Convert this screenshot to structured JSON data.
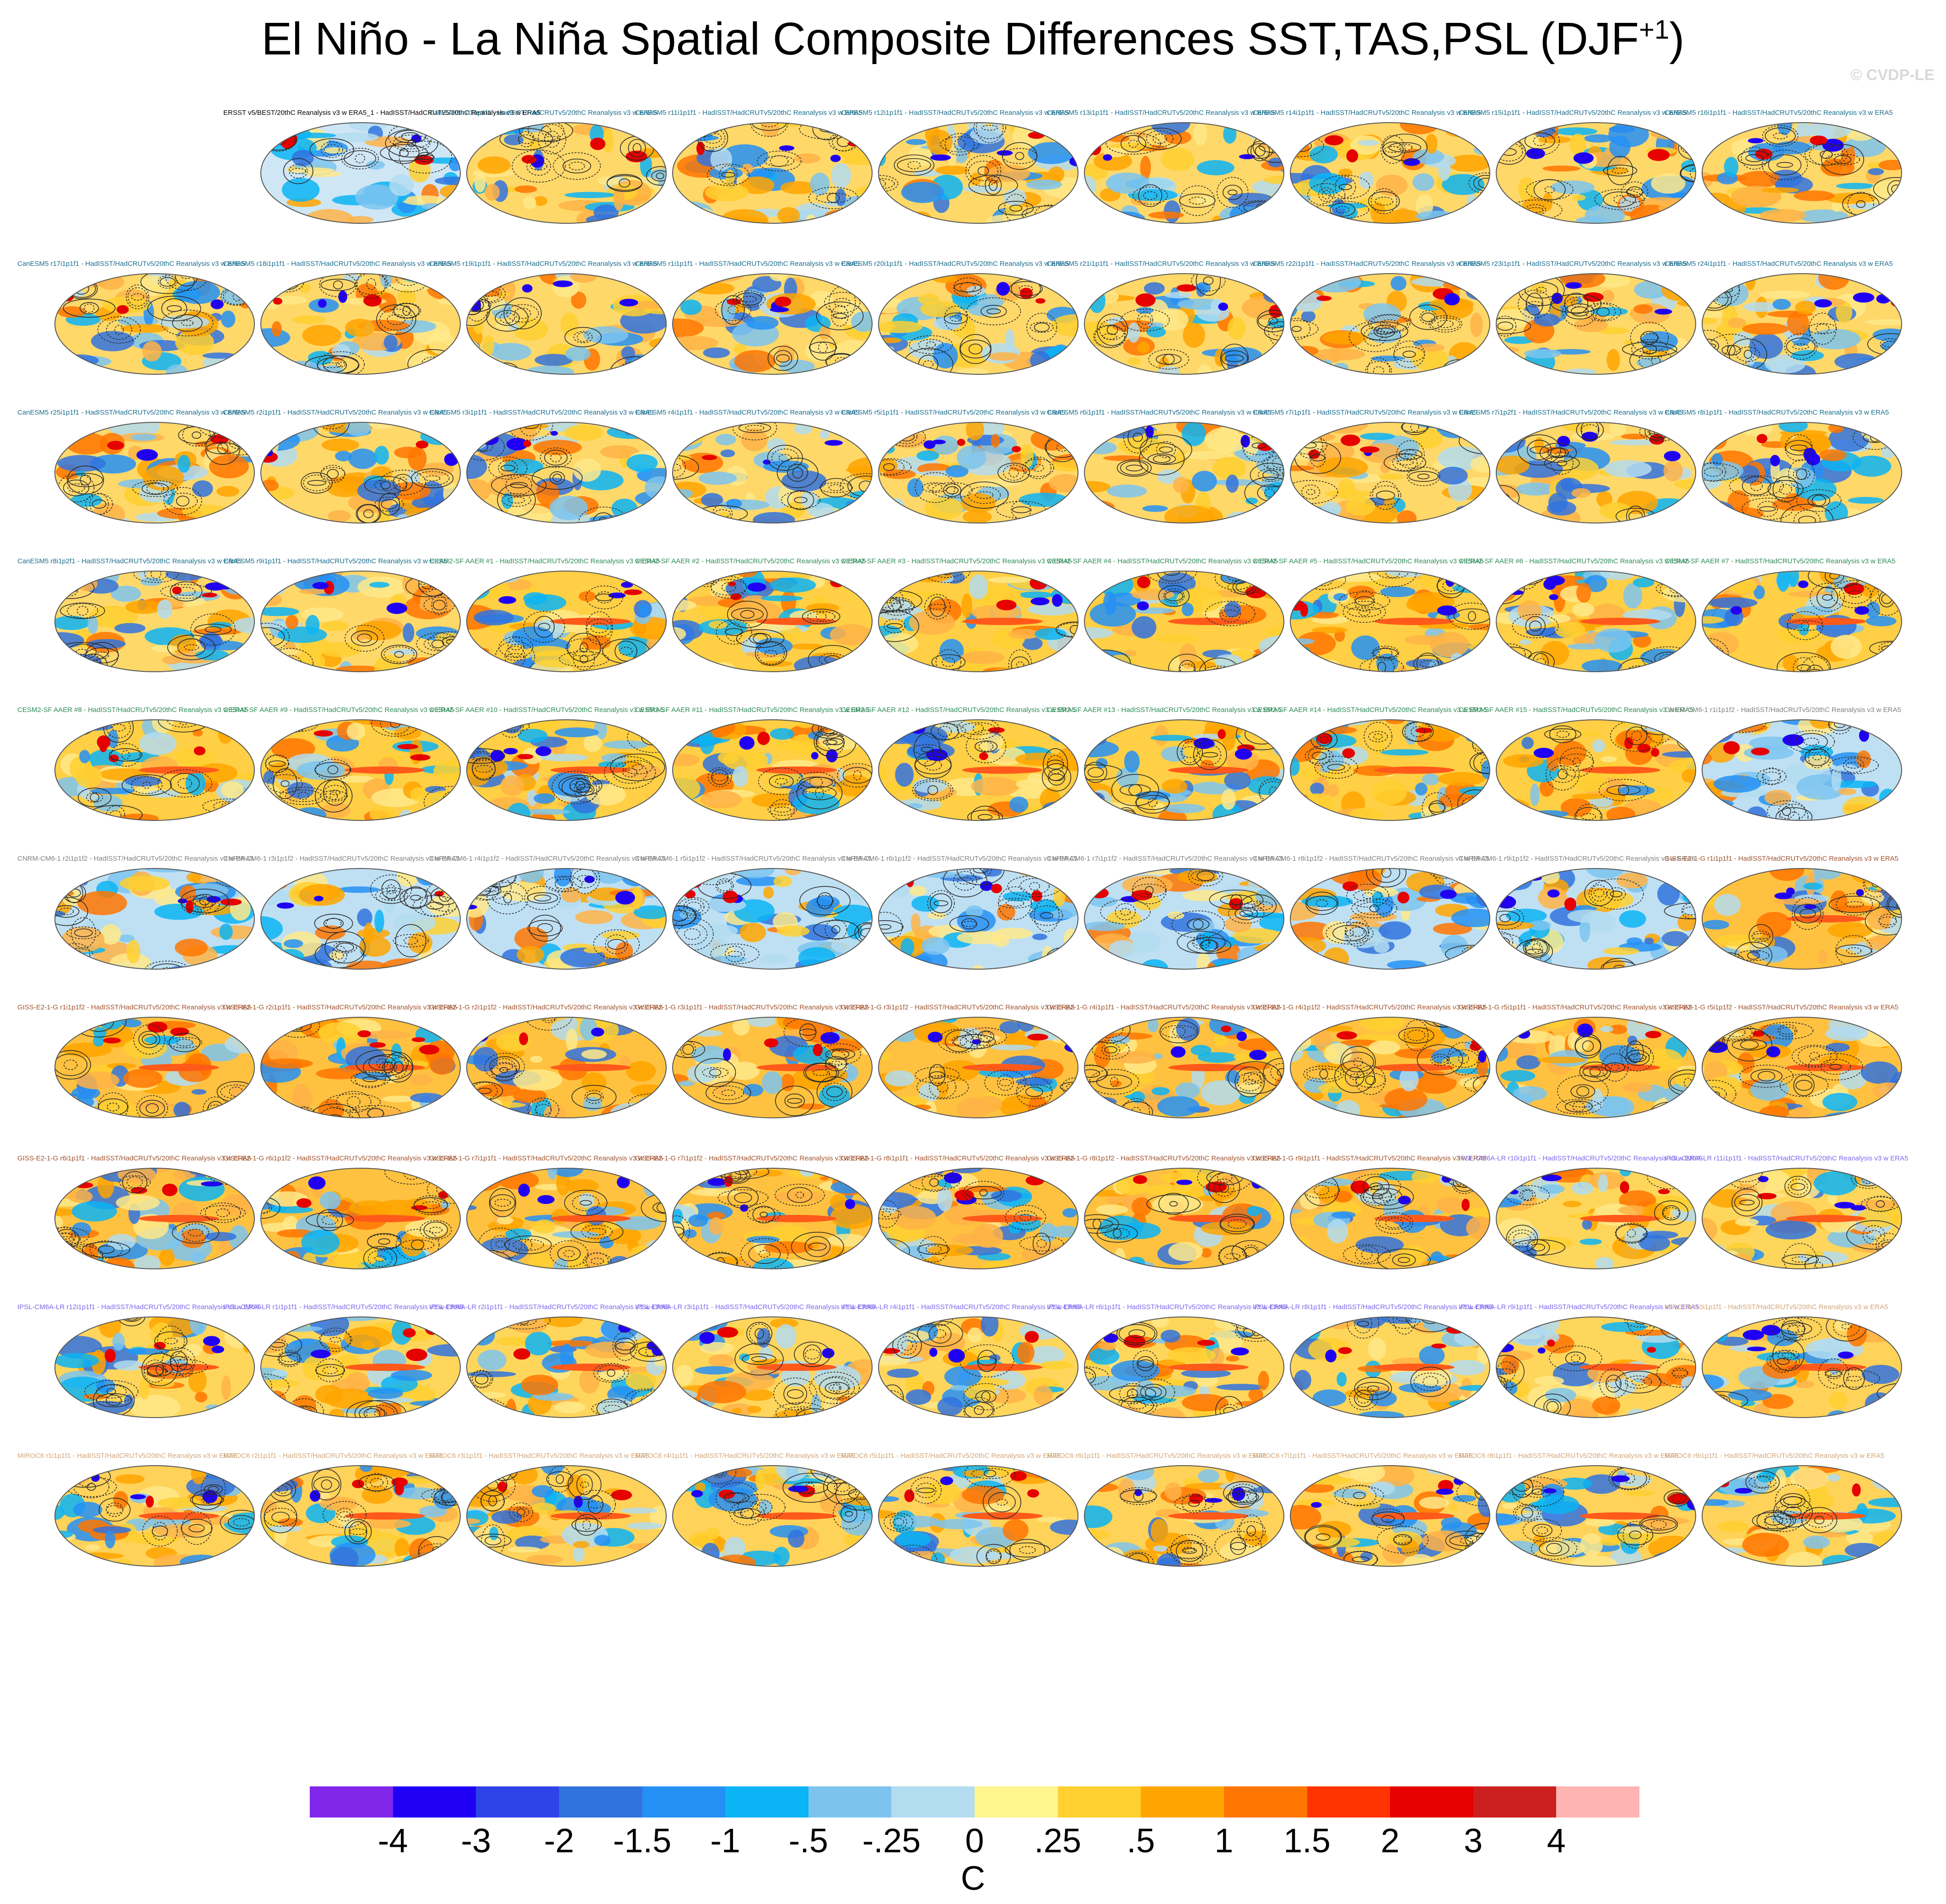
{
  "title": {
    "main": "El Niño - La Niña Spatial Composite Differences SST,TAS,PSL (DJF",
    "superscript": "+1",
    "close": ")"
  },
  "copyright": "© CVDP-LE",
  "panels": [
    {
      "label": "ERSST v5/BEST/20thC Reanalysis v3 w ERA5_1 - HadISST/HadCRUTv5/20thC Reanalysis v3 w ERA5",
      "color": "#000000",
      "pattern": "obs"
    },
    {
      "label": "CanESM5 r10i1p1f1 - HadISST/HadCRUTv5/20thC Reanalysis v3 w ERA5",
      "color": "#1a6e8e",
      "pattern": "canesm"
    },
    {
      "label": "CanESM5 r11i1p1f1 - HadISST/HadCRUTv5/20thC Reanalysis v3 w ERA5",
      "color": "#1a6e8e",
      "pattern": "canesm"
    },
    {
      "label": "CanESM5 r12i1p1f1 - HadISST/HadCRUTv5/20thC Reanalysis v3 w ERA5",
      "color": "#1a6e8e",
      "pattern": "canesm"
    },
    {
      "label": "CanESM5 r13i1p1f1 - HadISST/HadCRUTv5/20thC Reanalysis v3 w ERA5",
      "color": "#1a6e8e",
      "pattern": "canesm"
    },
    {
      "label": "CanESM5 r14i1p1f1 - HadISST/HadCRUTv5/20thC Reanalysis v3 w ERA5",
      "color": "#1a6e8e",
      "pattern": "canesm"
    },
    {
      "label": "CanESM5 r15i1p1f1 - HadISST/HadCRUTv5/20thC Reanalysis v3 w ERA5",
      "color": "#1a6e8e",
      "pattern": "canesm"
    },
    {
      "label": "CanESM5 r16i1p1f1 - HadISST/HadCRUTv5/20thC Reanalysis v3 w ERA5",
      "color": "#1a6e8e",
      "pattern": "canesm"
    },
    {
      "label": "CanESM5 r17i1p1f1 - HadISST/HadCRUTv5/20thC Reanalysis v3 w ERA5",
      "color": "#1a6e8e",
      "pattern": "canesm"
    },
    {
      "label": "CanESM5 r18i1p1f1 - HadISST/HadCRUTv5/20thC Reanalysis v3 w ERA5",
      "color": "#1a6e8e",
      "pattern": "canesm"
    },
    {
      "label": "CanESM5 r19i1p1f1 - HadISST/HadCRUTv5/20thC Reanalysis v3 w ERA5",
      "color": "#1a6e8e",
      "pattern": "canesm"
    },
    {
      "label": "CanESM5 r1i1p1f1 - HadISST/HadCRUTv5/20thC Reanalysis v3 w ERA5",
      "color": "#1a6e8e",
      "pattern": "canesm"
    },
    {
      "label": "CanESM5 r20i1p1f1 - HadISST/HadCRUTv5/20thC Reanalysis v3 w ERA5",
      "color": "#1a6e8e",
      "pattern": "canesm"
    },
    {
      "label": "CanESM5 r21i1p1f1 - HadISST/HadCRUTv5/20thC Reanalysis v3 w ERA5",
      "color": "#1a6e8e",
      "pattern": "canesm"
    },
    {
      "label": "CanESM5 r22i1p1f1 - HadISST/HadCRUTv5/20thC Reanalysis v3 w ERA5",
      "color": "#1a6e8e",
      "pattern": "canesm"
    },
    {
      "label": "CanESM5 r23i1p1f1 - HadISST/HadCRUTv5/20thC Reanalysis v3 w ERA5",
      "color": "#1a6e8e",
      "pattern": "canesm"
    },
    {
      "label": "CanESM5 r24i1p1f1 - HadISST/HadCRUTv5/20thC Reanalysis v3 w ERA5",
      "color": "#1a6e8e",
      "pattern": "canesm"
    },
    {
      "label": "CanESM5 r25i1p1f1 - HadISST/HadCRUTv5/20thC Reanalysis v3 w ERA5",
      "color": "#1a6e8e",
      "pattern": "canesm"
    },
    {
      "label": "CanESM5 r2i1p1f1 - HadISST/HadCRUTv5/20thC Reanalysis v3 w ERA5",
      "color": "#1a6e8e",
      "pattern": "canesm"
    },
    {
      "label": "CanESM5 r3i1p1f1 - HadISST/HadCRUTv5/20thC Reanalysis v3 w ERA5",
      "color": "#1a6e8e",
      "pattern": "canesm"
    },
    {
      "label": "CanESM5 r4i1p1f1 - HadISST/HadCRUTv5/20thC Reanalysis v3 w ERA5",
      "color": "#1a6e8e",
      "pattern": "canesm"
    },
    {
      "label": "CanESM5 r5i1p1f1 - HadISST/HadCRUTv5/20thC Reanalysis v3 w ERA5",
      "color": "#1a6e8e",
      "pattern": "canesm"
    },
    {
      "label": "CanESM5 r6i1p1f1 - HadISST/HadCRUTv5/20thC Reanalysis v3 w ERA5",
      "color": "#1a6e8e",
      "pattern": "canesm"
    },
    {
      "label": "CanESM5 r7i1p1f1 - HadISST/HadCRUTv5/20thC Reanalysis v3 w ERA5",
      "color": "#1a6e8e",
      "pattern": "canesm"
    },
    {
      "label": "CanESM5 r7i1p2f1 - HadISST/HadCRUTv5/20thC Reanalysis v3 w ERA5",
      "color": "#1a6e8e",
      "pattern": "canesm"
    },
    {
      "label": "CanESM5 r8i1p1f1 - HadISST/HadCRUTv5/20thC Reanalysis v3 w ERA5",
      "color": "#1a6e8e",
      "pattern": "canesm"
    },
    {
      "label": "CanESM5 r8i1p2f1 - HadISST/HadCRUTv5/20thC Reanalysis v3 w ERA5",
      "color": "#1a6e8e",
      "pattern": "canesm"
    },
    {
      "label": "CanESM5 r9i1p1f1 - HadISST/HadCRUTv5/20thC Reanalysis v3 w ERA5",
      "color": "#1a6e8e",
      "pattern": "canesm"
    },
    {
      "label": "CESM2-SF AAER #1 - HadISST/HadCRUTv5/20thC Reanalysis v3 w ERA5",
      "color": "#2e8b57",
      "pattern": "cesm"
    },
    {
      "label": "CESM2-SF AAER #2 - HadISST/HadCRUTv5/20thC Reanalysis v3 w ERA5",
      "color": "#2e8b57",
      "pattern": "cesm"
    },
    {
      "label": "CESM2-SF AAER #3 - HadISST/HadCRUTv5/20thC Reanalysis v3 w ERA5",
      "color": "#2e8b57",
      "pattern": "cesm"
    },
    {
      "label": "CESM2-SF AAER #4 - HadISST/HadCRUTv5/20thC Reanalysis v3 w ERA5",
      "color": "#2e8b57",
      "pattern": "cesm"
    },
    {
      "label": "CESM2-SF AAER #5 - HadISST/HadCRUTv5/20thC Reanalysis v3 w ERA5",
      "color": "#2e8b57",
      "pattern": "cesm"
    },
    {
      "label": "CESM2-SF AAER #6 - HadISST/HadCRUTv5/20thC Reanalysis v3 w ERA5",
      "color": "#2e8b57",
      "pattern": "cesm"
    },
    {
      "label": "CESM2-SF AAER #7 - HadISST/HadCRUTv5/20thC Reanalysis v3 w ERA5",
      "color": "#2e8b57",
      "pattern": "cesm"
    },
    {
      "label": "CESM2-SF AAER #8 - HadISST/HadCRUTv5/20thC Reanalysis v3 w ERA5",
      "color": "#2e8b57",
      "pattern": "cesm"
    },
    {
      "label": "CESM2-SF AAER #9 - HadISST/HadCRUTv5/20thC Reanalysis v3 w ERA5",
      "color": "#2e8b57",
      "pattern": "cesm"
    },
    {
      "label": "CESM2-SF AAER #10 - HadISST/HadCRUTv5/20thC Reanalysis v3 w ERA5",
      "color": "#2e8b57",
      "pattern": "cesm"
    },
    {
      "label": "CESM2-SF AAER #11 - HadISST/HadCRUTv5/20thC Reanalysis v3 w ERA5",
      "color": "#2e8b57",
      "pattern": "cesm"
    },
    {
      "label": "CESM2-SF AAER #12 - HadISST/HadCRUTv5/20thC Reanalysis v3 w ERA5",
      "color": "#2e8b57",
      "pattern": "cesm"
    },
    {
      "label": "CESM2-SF AAER #13 - HadISST/HadCRUTv5/20thC Reanalysis v3 w ERA5",
      "color": "#2e8b57",
      "pattern": "cesm"
    },
    {
      "label": "CESM2-SF AAER #14 - HadISST/HadCRUTv5/20thC Reanalysis v3 w ERA5",
      "color": "#2e8b57",
      "pattern": "cesm"
    },
    {
      "label": "CESM2-SF AAER #15 - HadISST/HadCRUTv5/20thC Reanalysis v3 w ERA5",
      "color": "#2e8b57",
      "pattern": "cesm"
    },
    {
      "label": "CNRM-CM6-1 r1i1p1f2 - HadISST/HadCRUTv5/20thC Reanalysis v3 w ERA5",
      "color": "#808080",
      "pattern": "cnrm"
    },
    {
      "label": "CNRM-CM6-1 r2i1p1f2 - HadISST/HadCRUTv5/20thC Reanalysis v3 w ERA5",
      "color": "#808080",
      "pattern": "cnrm"
    },
    {
      "label": "CNRM-CM6-1 r3i1p1f2 - HadISST/HadCRUTv5/20thC Reanalysis v3 w ERA5",
      "color": "#808080",
      "pattern": "cnrm"
    },
    {
      "label": "CNRM-CM6-1 r4i1p1f2 - HadISST/HadCRUTv5/20thC Reanalysis v3 w ERA5",
      "color": "#808080",
      "pattern": "cnrm"
    },
    {
      "label": "CNRM-CM6-1 r5i1p1f2 - HadISST/HadCRUTv5/20thC Reanalysis v3 w ERA5",
      "color": "#808080",
      "pattern": "cnrm"
    },
    {
      "label": "CNRM-CM6-1 r6i1p1f2 - HadISST/HadCRUTv5/20thC Reanalysis v3 w ERA5",
      "color": "#808080",
      "pattern": "cnrm"
    },
    {
      "label": "CNRM-CM6-1 r7i1p1f2 - HadISST/HadCRUTv5/20thC Reanalysis v3 w ERA5",
      "color": "#808080",
      "pattern": "cnrm"
    },
    {
      "label": "CNRM-CM6-1 r8i1p1f2 - HadISST/HadCRUTv5/20thC Reanalysis v3 w ERA5",
      "color": "#808080",
      "pattern": "cnrm"
    },
    {
      "label": "CNRM-CM6-1 r9i1p1f2 - HadISST/HadCRUTv5/20thC Reanalysis v3 w ERA5",
      "color": "#808080",
      "pattern": "cnrm"
    },
    {
      "label": "GISS-E2-1-G r1i1p1f1 - HadISST/HadCRUTv5/20thC Reanalysis v3 w ERA5",
      "color": "#a0522d",
      "pattern": "giss"
    },
    {
      "label": "GISS-E2-1-G r1i1p1f2 - HadISST/HadCRUTv5/20thC Reanalysis v3 w ERA5",
      "color": "#a0522d",
      "pattern": "giss"
    },
    {
      "label": "GISS-E2-1-G r2i1p1f1 - HadISST/HadCRUTv5/20thC Reanalysis v3 w ERA5",
      "color": "#a0522d",
      "pattern": "giss"
    },
    {
      "label": "GISS-E2-1-G r2i1p1f2 - HadISST/HadCRUTv5/20thC Reanalysis v3 w ERA5",
      "color": "#a0522d",
      "pattern": "giss"
    },
    {
      "label": "GISS-E2-1-G r3i1p1f1 - HadISST/HadCRUTv5/20thC Reanalysis v3 w ERA5",
      "color": "#a0522d",
      "pattern": "giss"
    },
    {
      "label": "GISS-E2-1-G r3i1p1f2 - HadISST/HadCRUTv5/20thC Reanalysis v3 w ERA5",
      "color": "#a0522d",
      "pattern": "giss"
    },
    {
      "label": "GISS-E2-1-G r4i1p1f1 - HadISST/HadCRUTv5/20thC Reanalysis v3 w ERA5",
      "color": "#a0522d",
      "pattern": "giss"
    },
    {
      "label": "GISS-E2-1-G r4i1p1f2 - HadISST/HadCRUTv5/20thC Reanalysis v3 w ERA5",
      "color": "#a0522d",
      "pattern": "giss"
    },
    {
      "label": "GISS-E2-1-G r5i1p1f1 - HadISST/HadCRUTv5/20thC Reanalysis v3 w ERA5",
      "color": "#a0522d",
      "pattern": "giss"
    },
    {
      "label": "GISS-E2-1-G r5i1p1f2 - HadISST/HadCRUTv5/20thC Reanalysis v3 w ERA5",
      "color": "#a0522d",
      "pattern": "giss"
    },
    {
      "label": "GISS-E2-1-G r6i1p1f1 - HadISST/HadCRUTv5/20thC Reanalysis v3 w ERA5",
      "color": "#a0522d",
      "pattern": "giss"
    },
    {
      "label": "GISS-E2-1-G r6i1p1f2 - HadISST/HadCRUTv5/20thC Reanalysis v3 w ERA5",
      "color": "#a0522d",
      "pattern": "giss"
    },
    {
      "label": "GISS-E2-1-G r7i1p1f1 - HadISST/HadCRUTv5/20thC Reanalysis v3 w ERA5",
      "color": "#a0522d",
      "pattern": "giss"
    },
    {
      "label": "GISS-E2-1-G r7i1p1f2 - HadISST/HadCRUTv5/20thC Reanalysis v3 w ERA5",
      "color": "#a0522d",
      "pattern": "giss"
    },
    {
      "label": "GISS-E2-1-G r8i1p1f1 - HadISST/HadCRUTv5/20thC Reanalysis v3 w ERA5",
      "color": "#a0522d",
      "pattern": "giss"
    },
    {
      "label": "GISS-E2-1-G r8i1p1f2 - HadISST/HadCRUTv5/20thC Reanalysis v3 w ERA5",
      "color": "#a0522d",
      "pattern": "giss"
    },
    {
      "label": "GISS-E2-1-G r9i1p1f1 - HadISST/HadCRUTv5/20thC Reanalysis v3 w ERA5",
      "color": "#a0522d",
      "pattern": "giss"
    },
    {
      "label": "IPSL-CM6A-LR r10i1p1f1 - HadISST/HadCRUTv5/20thC Reanalysis v3 w ERA5",
      "color": "#7b68ee",
      "pattern": "ipsl"
    },
    {
      "label": "IPSL-CM6A-LR r11i1p1f1 - HadISST/HadCRUTv5/20thC Reanalysis v3 w ERA5",
      "color": "#7b68ee",
      "pattern": "ipsl"
    },
    {
      "label": "IPSL-CM6A-LR r12i1p1f1 - HadISST/HadCRUTv5/20thC Reanalysis v3 w ERA5",
      "color": "#7b68ee",
      "pattern": "ipsl"
    },
    {
      "label": "IPSL-CM6A-LR r1i1p1f1 - HadISST/HadCRUTv5/20thC Reanalysis v3 w ERA5",
      "color": "#7b68ee",
      "pattern": "ipsl"
    },
    {
      "label": "IPSL-CM6A-LR r2i1p1f1 - HadISST/HadCRUTv5/20thC Reanalysis v3 w ERA5",
      "color": "#7b68ee",
      "pattern": "ipsl"
    },
    {
      "label": "IPSL-CM6A-LR r3i1p1f1 - HadISST/HadCRUTv5/20thC Reanalysis v3 w ERA5",
      "color": "#7b68ee",
      "pattern": "ipsl"
    },
    {
      "label": "IPSL-CM6A-LR r4i1p1f1 - HadISST/HadCRUTv5/20thC Reanalysis v3 w ERA5",
      "color": "#7b68ee",
      "pattern": "ipsl"
    },
    {
      "label": "IPSL-CM6A-LR r6i1p1f1 - HadISST/HadCRUTv5/20thC Reanalysis v3 w ERA5",
      "color": "#7b68ee",
      "pattern": "ipsl"
    },
    {
      "label": "IPSL-CM6A-LR r8i1p1f1 - HadISST/HadCRUTv5/20thC Reanalysis v3 w ERA5",
      "color": "#7b68ee",
      "pattern": "ipsl"
    },
    {
      "label": "IPSL-CM6A-LR r9i1p1f1 - HadISST/HadCRUTv5/20thC Reanalysis v3 w ERA5",
      "color": "#7b68ee",
      "pattern": "ipsl"
    },
    {
      "label": "MIROC6 r10i1p1f1 - HadISST/HadCRUTv5/20thC Reanalysis v3 w ERA5",
      "color": "#d2a679",
      "pattern": "miroc"
    },
    {
      "label": "MIROC6 r1i1p1f1 - HadISST/HadCRUTv5/20thC Reanalysis v3 w ERA5",
      "color": "#d2a679",
      "pattern": "miroc"
    },
    {
      "label": "MIROC6 r2i1p1f1 - HadISST/HadCRUTv5/20thC Reanalysis v3 w ERA5",
      "color": "#d2a679",
      "pattern": "miroc"
    },
    {
      "label": "MIROC6 r3i1p1f1 - HadISST/HadCRUTv5/20thC Reanalysis v3 w ERA5",
      "color": "#d2a679",
      "pattern": "miroc"
    },
    {
      "label": "MIROC6 r4i1p1f1 - HadISST/HadCRUTv5/20thC Reanalysis v3 w ERA5",
      "color": "#d2a679",
      "pattern": "miroc"
    },
    {
      "label": "MIROC6 r5i1p1f1 - HadISST/HadCRUTv5/20thC Reanalysis v3 w ERA5",
      "color": "#d2a679",
      "pattern": "miroc"
    },
    {
      "label": "MIROC6 r6i1p1f1 - HadISST/HadCRUTv5/20thC Reanalysis v3 w ERA5",
      "color": "#d2a679",
      "pattern": "miroc"
    },
    {
      "label": "MIROC6 r7i1p1f1 - HadISST/HadCRUTv5/20thC Reanalysis v3 w ERA5",
      "color": "#d2a679",
      "pattern": "miroc"
    },
    {
      "label": "MIROC6 r8i1p1f1 - HadISST/HadCRUTv5/20thC Reanalysis v3 w ERA5",
      "color": "#d2a679",
      "pattern": "miroc"
    },
    {
      "label": "MIROC6 r9i1p1f1 - HadISST/HadCRUTv5/20thC Reanalysis v3 w ERA5",
      "color": "#d2a679",
      "pattern": "miroc"
    }
  ],
  "colorbar": {
    "colors": [
      "#7f26e8",
      "#1f00f5",
      "#2f44e8",
      "#3173de",
      "#2490f5",
      "#0ab4f5",
      "#7cc4ee",
      "#b3dcf0",
      "#fff68f",
      "#ffd030",
      "#ffa500",
      "#ff7600",
      "#ff3400",
      "#e60000",
      "#cc1f1f",
      "#ffb3b3"
    ],
    "ticks": [
      "-4",
      "-3",
      "-2",
      "-1.5",
      "-1",
      "-.5",
      "-.25",
      "0",
      ".25",
      ".5",
      "1",
      "1.5",
      "2",
      "3",
      "4"
    ],
    "units": "C"
  }
}
